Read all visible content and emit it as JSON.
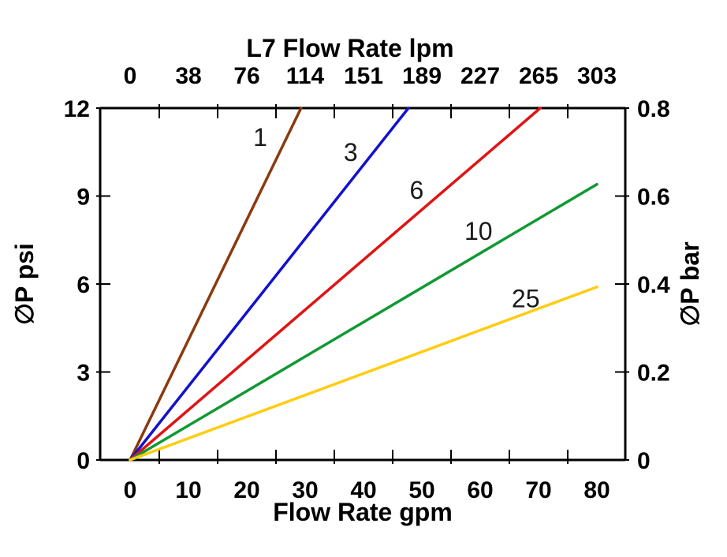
{
  "page": {
    "background": "#ffffff",
    "axis_color": "#000000"
  },
  "chart_data": {
    "type": "line",
    "title": "L7 Flow Rate lpm",
    "top_axis": {
      "title": "L7 Flow Rate lpm",
      "unit": "lpm",
      "tick_labels": [
        "0",
        "38",
        "76",
        "114",
        "151",
        "189",
        "227",
        "265",
        "303"
      ]
    },
    "bottom_axis": {
      "title": "Flow Rate gpm",
      "unit": "gpm",
      "tick_labels": [
        "0",
        "10",
        "20",
        "30",
        "40",
        "50",
        "60",
        "70",
        "80"
      ],
      "tick_values": [
        0,
        10,
        20,
        30,
        40,
        50,
        60,
        70,
        80
      ],
      "range": [
        0,
        80
      ],
      "ticks_between_labels": true
    },
    "left_axis": {
      "title": "∅P psi",
      "unit": "psi",
      "tick_labels": [
        "0",
        "3",
        "6",
        "9",
        "12"
      ],
      "tick_values": [
        0,
        3,
        6,
        9,
        12
      ],
      "range": [
        0,
        12
      ]
    },
    "right_axis": {
      "title": "∅P bar",
      "unit": "bar",
      "tick_labels": [
        "0",
        "0.2",
        "0.4",
        "0.6",
        "0.8"
      ],
      "tick_values": [
        0,
        0.2,
        0.4,
        0.6,
        0.8
      ],
      "range": [
        0,
        0.8
      ]
    },
    "grid": false,
    "legend": "inline-labels",
    "series": [
      {
        "label": "1",
        "color": "#8B3A0D",
        "points_gpm_psi": [
          [
            0,
            0
          ],
          [
            29.3,
            12
          ]
        ],
        "label_at_gpm_psi": [
          22.3,
          11.0
        ]
      },
      {
        "label": "3",
        "color": "#1212CC",
        "points_gpm_psi": [
          [
            0,
            0
          ],
          [
            47.7,
            12
          ]
        ],
        "label_at_gpm_psi": [
          37.8,
          10.5
        ]
      },
      {
        "label": "6",
        "color": "#E01414",
        "points_gpm_psi": [
          [
            0,
            0
          ],
          [
            70.3,
            12
          ]
        ],
        "label_at_gpm_psi": [
          49.1,
          9.2
        ]
      },
      {
        "label": "10",
        "color": "#109933",
        "points_gpm_psi": [
          [
            0,
            0
          ],
          [
            80,
            9.4
          ]
        ],
        "label_at_gpm_psi": [
          59.7,
          7.8
        ]
      },
      {
        "label": "25",
        "color": "#FFCC11",
        "points_gpm_psi": [
          [
            0,
            0
          ],
          [
            80,
            5.9
          ]
        ],
        "label_at_gpm_psi": [
          67.8,
          5.5
        ]
      }
    ]
  }
}
